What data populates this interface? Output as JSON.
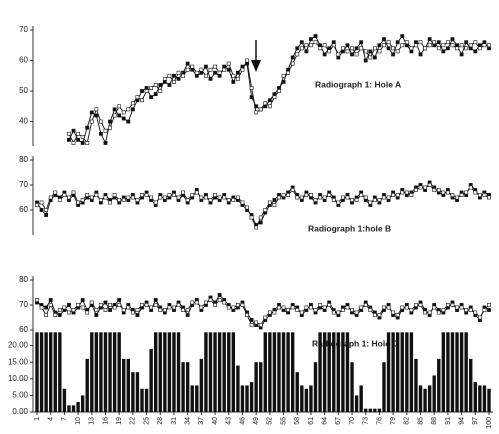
{
  "chart_data": [
    {
      "type": "line",
      "annotation": "Radiograph 1: Hole A",
      "ylim": [
        32,
        70
      ],
      "yticks": [
        40,
        50,
        60,
        70
      ],
      "series": [
        {
          "color": "#111111",
          "marker_fill": "#111111",
          "values": [
            null,
            null,
            null,
            null,
            null,
            null,
            null,
            34,
            37,
            34,
            33,
            38,
            43,
            42,
            36,
            33,
            40,
            44,
            42,
            41,
            40,
            44,
            47,
            50,
            51,
            48,
            49,
            52,
            53,
            52,
            55,
            54,
            56,
            59,
            57,
            55,
            56,
            58,
            54,
            56,
            55,
            58,
            57,
            53,
            56,
            58,
            59,
            48,
            45,
            44,
            45,
            47,
            49,
            51,
            53,
            57,
            61,
            64,
            66,
            63,
            67,
            68,
            65,
            62,
            64,
            66,
            61,
            63,
            65,
            62,
            64,
            66,
            60,
            63,
            61,
            65,
            67,
            64,
            62,
            66,
            68,
            65,
            63,
            66,
            62,
            64,
            67,
            65,
            66,
            63,
            64,
            67,
            65,
            62,
            66,
            64,
            63,
            65,
            66,
            64
          ]
        },
        {
          "color": "#111111",
          "marker_fill": "#ffffff",
          "values": [
            null,
            null,
            null,
            null,
            null,
            null,
            null,
            36,
            33,
            36,
            35,
            33,
            40,
            44,
            40,
            37,
            38,
            42,
            45,
            43,
            44,
            46,
            48,
            47,
            50,
            51,
            52,
            50,
            54,
            55,
            53,
            56,
            55,
            57,
            58,
            56,
            57,
            55,
            57,
            58,
            56,
            57,
            59,
            55,
            54,
            57,
            60,
            51,
            43,
            44,
            46,
            45,
            48,
            50,
            55,
            56,
            59,
            62,
            64,
            65,
            65,
            66,
            64,
            65,
            63,
            65,
            62,
            64,
            63,
            64,
            62,
            64,
            63,
            61,
            64,
            63,
            65,
            66,
            64,
            63,
            65,
            66,
            64,
            65,
            66,
            64,
            65,
            66,
            64,
            65,
            66,
            65,
            64,
            65,
            64,
            65,
            66,
            64,
            65,
            65
          ]
        }
      ]
    },
    {
      "type": "line",
      "annotation": "Radiograph 1:hole B",
      "ylim": [
        50,
        80
      ],
      "yticks": [
        60,
        70,
        80
      ],
      "series": [
        {
          "color": "#111111",
          "marker_fill": "#111111",
          "values": [
            63,
            60,
            58,
            64,
            66,
            65,
            67,
            64,
            66,
            62,
            63,
            65,
            64,
            67,
            63,
            66,
            64,
            65,
            63,
            65,
            64,
            66,
            63,
            65,
            67,
            64,
            62,
            66,
            64,
            65,
            67,
            64,
            66,
            63,
            65,
            68,
            64,
            66,
            63,
            65,
            64,
            66,
            63,
            65,
            64,
            62,
            60,
            58,
            54,
            55,
            59,
            62,
            64,
            66,
            65,
            67,
            69,
            66,
            64,
            67,
            65,
            63,
            66,
            64,
            67,
            65,
            62,
            64,
            66,
            63,
            65,
            67,
            64,
            62,
            65,
            63,
            66,
            64,
            67,
            65,
            68,
            66,
            67,
            69,
            70,
            68,
            71,
            69,
            67,
            66,
            68,
            65,
            64,
            67,
            66,
            70,
            68,
            65,
            67,
            66
          ]
        },
        {
          "color": "#111111",
          "marker_fill": "#ffffff",
          "values": [
            62,
            63,
            60,
            65,
            67,
            64,
            66,
            65,
            67,
            63,
            64,
            66,
            65,
            66,
            64,
            65,
            63,
            66,
            64,
            64,
            65,
            65,
            64,
            66,
            66,
            65,
            63,
            65,
            65,
            66,
            66,
            65,
            67,
            64,
            66,
            67,
            65,
            65,
            64,
            66,
            65,
            65,
            64,
            64,
            65,
            63,
            61,
            57,
            53,
            57,
            60,
            63,
            62,
            65,
            66,
            66,
            68,
            65,
            65,
            66,
            66,
            64,
            65,
            65,
            66,
            64,
            63,
            65,
            65,
            64,
            64,
            66,
            65,
            63,
            64,
            64,
            65,
            65,
            66,
            66,
            67,
            67,
            66,
            68,
            69,
            69,
            70,
            68,
            68,
            67,
            67,
            66,
            65,
            66,
            67,
            69,
            67,
            66,
            66,
            65
          ]
        }
      ]
    },
    {
      "type": "line",
      "annotation": "Radiograph 1: Hole C",
      "ylim": [
        56,
        80
      ],
      "yticks": [
        60,
        70,
        80
      ],
      "series": [
        {
          "color": "#111111",
          "marker_fill": "#111111",
          "values": [
            71,
            70,
            69,
            72,
            67,
            66,
            68,
            70,
            67,
            69,
            72,
            68,
            70,
            66,
            69,
            71,
            68,
            70,
            72,
            67,
            70,
            68,
            66,
            69,
            71,
            68,
            72,
            69,
            67,
            70,
            68,
            71,
            69,
            66,
            70,
            72,
            68,
            70,
            73,
            71,
            74,
            72,
            70,
            68,
            69,
            71,
            67,
            64,
            62,
            61,
            64,
            66,
            68,
            70,
            68,
            67,
            70,
            69,
            66,
            68,
            70,
            67,
            69,
            68,
            71,
            68,
            66,
            69,
            70,
            67,
            66,
            68,
            71,
            69,
            67,
            65,
            68,
            70,
            66,
            65,
            68,
            70,
            67,
            69,
            71,
            68,
            66,
            70,
            68,
            67,
            69,
            71,
            68,
            70,
            67,
            69,
            66,
            64,
            69,
            68
          ]
        },
        {
          "color": "#111111",
          "marker_fill": "#ffffff",
          "values": [
            72,
            69,
            66,
            70,
            66,
            68,
            69,
            67,
            68,
            70,
            69,
            67,
            71,
            68,
            70,
            68,
            70,
            69,
            70,
            68,
            69,
            67,
            68,
            70,
            70,
            69,
            70,
            68,
            68,
            69,
            69,
            70,
            68,
            68,
            71,
            71,
            69,
            71,
            72,
            70,
            72,
            71,
            69,
            69,
            70,
            70,
            66,
            62,
            63,
            62,
            65,
            67,
            67,
            69,
            69,
            68,
            69,
            68,
            67,
            69,
            69,
            68,
            70,
            69,
            70,
            67,
            67,
            68,
            69,
            68,
            67,
            69,
            70,
            68,
            66,
            66,
            69,
            69,
            67,
            66,
            69,
            69,
            68,
            70,
            70,
            67,
            67,
            69,
            67,
            68,
            70,
            70,
            69,
            69,
            68,
            68,
            67,
            65,
            68,
            70
          ]
        }
      ]
    },
    {
      "type": "bar",
      "color": "#111111",
      "ylim": [
        0,
        25
      ],
      "yticks": [
        {
          "value": 0,
          "label": "0.00"
        },
        {
          "value": 5,
          "label": "5.00"
        },
        {
          "value": 10,
          "label": "10.00"
        },
        {
          "value": 15,
          "label": "15.00"
        },
        {
          "value": 20,
          "label": "20.00"
        }
      ],
      "categories": [
        1,
        null,
        null,
        4,
        null,
        null,
        7,
        null,
        null,
        10,
        null,
        null,
        13,
        null,
        null,
        16,
        null,
        null,
        19,
        null,
        null,
        22,
        null,
        null,
        25,
        null,
        null,
        28,
        null,
        null,
        31,
        null,
        null,
        34,
        null,
        null,
        37,
        null,
        null,
        40,
        null,
        null,
        43,
        null,
        null,
        46,
        null,
        null,
        49,
        null,
        null,
        52,
        null,
        null,
        55,
        null,
        null,
        58,
        null,
        null,
        61,
        null,
        null,
        64,
        null,
        null,
        67,
        null,
        null,
        70,
        null,
        null,
        73,
        null,
        null,
        76,
        null,
        null,
        79,
        null,
        null,
        82,
        null,
        null,
        85,
        null,
        null,
        88,
        null,
        null,
        91,
        null,
        null,
        94,
        null,
        null,
        97,
        null,
        null,
        100
      ],
      "values": [
        24,
        24,
        24,
        24,
        24,
        24,
        7,
        2,
        2,
        3,
        5,
        16,
        24,
        24,
        24,
        24,
        24,
        24,
        24,
        16,
        16,
        12,
        12,
        7,
        7,
        19,
        24,
        24,
        24,
        24,
        24,
        24,
        15,
        15,
        8,
        8,
        16,
        24,
        24,
        24,
        24,
        24,
        24,
        24,
        14,
        8,
        8,
        9,
        15,
        15,
        24,
        24,
        24,
        24,
        24,
        24,
        24,
        12,
        8,
        7,
        8,
        15,
        24,
        24,
        24,
        24,
        24,
        24,
        24,
        15,
        5,
        8,
        1,
        1,
        1,
        1,
        15,
        24,
        24,
        24,
        24,
        24,
        24,
        16,
        8,
        7,
        8,
        11,
        16,
        24,
        24,
        24,
        24,
        24,
        24,
        16,
        9,
        8,
        8,
        7
      ]
    }
  ]
}
